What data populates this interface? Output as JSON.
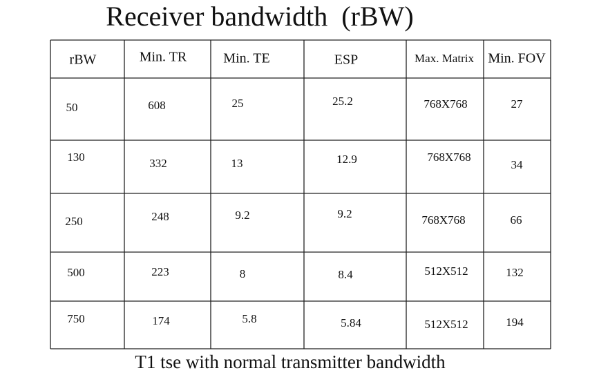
{
  "title": "Receiver bandwidth  (rBW)",
  "table": {
    "header": [
      "rBW",
      "Min. TR",
      "Min. TE",
      "ESP",
      "Max. Matrix",
      "Min. FOV"
    ],
    "rows": [
      [
        "50",
        "608",
        "25",
        "25.2",
        "768X768",
        "27"
      ],
      [
        "130",
        "332",
        "13",
        "12.9",
        "768X768",
        "34"
      ],
      [
        "250",
        "248",
        "9.2",
        "9.2",
        "768X768",
        "66"
      ],
      [
        "500",
        "223",
        "8",
        "8.4",
        "512X512",
        "132"
      ],
      [
        "750",
        "174",
        "5.8",
        "5.84",
        "512X512",
        "194"
      ]
    ]
  },
  "caption": "T1 tse with normal transmitter bandwidth"
}
